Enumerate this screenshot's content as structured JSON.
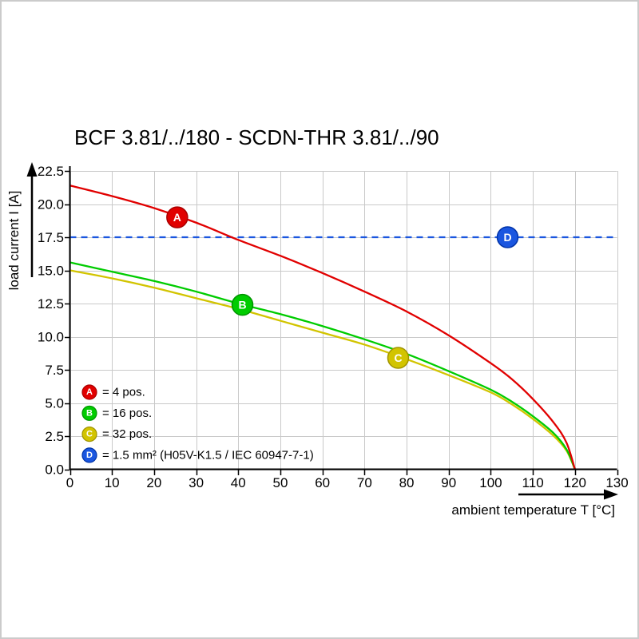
{
  "chart_data": {
    "type": "line",
    "title": "BCF 3.81/../180 - SCDN-THR 3.81/../90",
    "xlabel": "ambient temperature T [°C]",
    "ylabel": "load current I [A]",
    "xlim": [
      0,
      130
    ],
    "ylim": [
      0,
      22.5
    ],
    "xticks": [
      0,
      10,
      20,
      30,
      40,
      50,
      60,
      70,
      80,
      90,
      100,
      110,
      120,
      130
    ],
    "yticks": [
      0,
      2.5,
      5,
      7.5,
      10,
      12.5,
      15,
      17.5,
      20,
      22.5
    ],
    "grid": true,
    "grid_color": "#c9c9c9",
    "legend_position": "lower left",
    "series": [
      {
        "id": "A",
        "name": "4 pos.",
        "color": "#e10000",
        "edge": "#a80000",
        "dash": null,
        "points": [
          [
            0,
            21.4
          ],
          [
            10,
            20.6
          ],
          [
            20,
            19.7
          ],
          [
            30,
            18.6
          ],
          [
            40,
            17.3
          ],
          [
            50,
            16.1
          ],
          [
            60,
            14.8
          ],
          [
            70,
            13.4
          ],
          [
            80,
            11.9
          ],
          [
            90,
            10.1
          ],
          [
            100,
            8.0
          ],
          [
            105,
            6.8
          ],
          [
            110,
            5.3
          ],
          [
            115,
            3.5
          ],
          [
            118,
            2.0
          ],
          [
            120,
            0
          ]
        ],
        "marker": {
          "x": 25.5,
          "y": 19.0
        }
      },
      {
        "id": "B",
        "name": "16 pos.",
        "color": "#00cc00",
        "edge": "#009300",
        "dash": null,
        "points": [
          [
            0,
            15.6
          ],
          [
            10,
            14.9
          ],
          [
            20,
            14.2
          ],
          [
            30,
            13.4
          ],
          [
            40,
            12.5
          ],
          [
            50,
            11.7
          ],
          [
            60,
            10.8
          ],
          [
            70,
            9.8
          ],
          [
            80,
            8.7
          ],
          [
            90,
            7.4
          ],
          [
            100,
            6.0
          ],
          [
            105,
            5.1
          ],
          [
            110,
            4.0
          ],
          [
            115,
            2.7
          ],
          [
            118,
            1.5
          ],
          [
            120,
            0
          ]
        ],
        "marker": {
          "x": 41,
          "y": 12.4
        }
      },
      {
        "id": "C",
        "name": "32 pos.",
        "color": "#d2c400",
        "edge": "#a09400",
        "dash": null,
        "points": [
          [
            0,
            15.0
          ],
          [
            10,
            14.4
          ],
          [
            20,
            13.7
          ],
          [
            30,
            12.9
          ],
          [
            40,
            12.1
          ],
          [
            50,
            11.2
          ],
          [
            60,
            10.3
          ],
          [
            70,
            9.4
          ],
          [
            80,
            8.3
          ],
          [
            90,
            7.1
          ],
          [
            100,
            5.8
          ],
          [
            105,
            4.9
          ],
          [
            110,
            3.8
          ],
          [
            115,
            2.5
          ],
          [
            118,
            1.4
          ],
          [
            120,
            0
          ]
        ],
        "marker": {
          "x": 78,
          "y": 8.4
        }
      },
      {
        "id": "D",
        "name": "1.5 mm² (H05V-K1.5 / IEC 60947-7-1)",
        "color": "#1a56e0",
        "edge": "#0033a8",
        "dash": [
          8,
          6
        ],
        "points": [
          [
            0,
            17.5
          ],
          [
            130,
            17.5
          ]
        ],
        "marker": {
          "x": 104,
          "y": 17.5
        }
      }
    ],
    "legend": [
      {
        "id": "A",
        "label": "= 4 pos."
      },
      {
        "id": "B",
        "label": "= 16 pos."
      },
      {
        "id": "C",
        "label": "= 32 pos."
      },
      {
        "id": "D",
        "label": "= 1.5 mm² (H05V-K1.5 / IEC 60947-7-1)"
      }
    ]
  }
}
